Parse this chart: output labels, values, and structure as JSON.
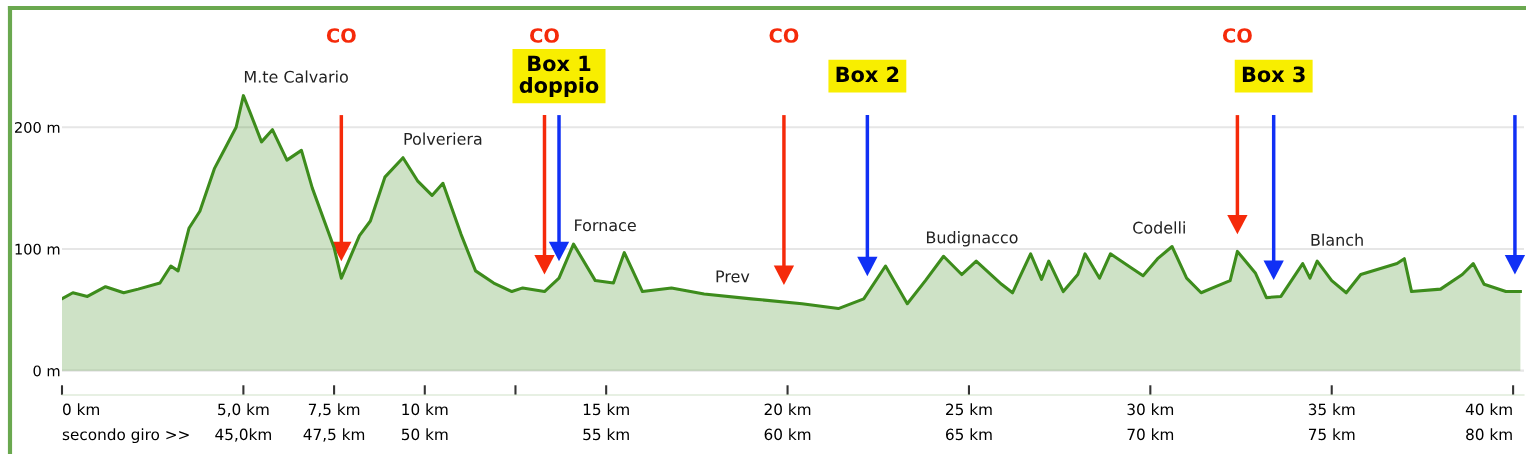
{
  "chart_data": {
    "type": "area",
    "x": [
      0,
      0.3,
      0.7,
      1.2,
      1.7,
      2.1,
      2.7,
      3.0,
      3.2,
      3.5,
      3.8,
      4.2,
      4.5,
      4.8,
      5.0,
      5.2,
      5.5,
      5.8,
      6.2,
      6.6,
      6.9,
      7.5,
      7.7,
      8.2,
      8.5,
      8.9,
      9.4,
      9.8,
      10.2,
      10.5,
      11.0,
      11.4,
      11.9,
      12.4,
      12.7,
      13.3,
      13.7,
      14.1,
      14.7,
      15.2,
      15.5,
      16.0,
      16.8,
      17.7,
      19.0,
      20.4,
      21.4,
      22.1,
      22.7,
      23.3,
      23.8,
      24.3,
      24.8,
      25.2,
      25.9,
      26.2,
      26.7,
      27.0,
      27.2,
      27.6,
      28.0,
      28.2,
      28.6,
      28.9,
      29.5,
      29.8,
      30.2,
      30.6,
      31.0,
      31.4,
      31.8,
      32.2,
      32.4,
      32.9,
      33.2,
      33.6,
      34.2,
      34.4,
      34.6,
      35.0,
      35.4,
      35.8,
      36.8,
      37.0,
      37.2,
      38.0,
      38.6,
      38.9,
      39.2,
      39.8,
      40.2
    ],
    "series": [
      {
        "color": "#3d8c1c",
        "values": [
          59,
          64,
          61,
          69,
          64,
          67,
          72,
          86,
          82,
          117,
          131,
          166,
          183,
          200,
          226,
          211,
          188,
          198,
          173,
          181,
          150,
          101,
          76,
          111,
          123,
          159,
          175,
          156,
          144,
          154,
          112,
          82,
          72,
          65,
          68,
          65,
          76,
          104,
          74,
          72,
          97,
          65,
          68,
          63,
          59,
          55,
          51,
          59,
          86,
          55,
          74,
          94,
          79,
          90,
          71,
          64,
          96,
          75,
          90,
          65,
          79,
          96,
          76,
          96,
          84,
          78,
          92,
          102,
          76,
          64,
          69,
          74,
          98,
          80,
          60,
          61,
          88,
          76,
          90,
          74,
          64,
          79,
          88,
          92,
          65,
          67,
          79,
          88,
          71,
          65,
          65
        ]
      }
    ],
    "xlim": [
      0,
      40.3
    ],
    "xticks": [
      {
        "value": 0,
        "label": "0 km"
      },
      {
        "value": 5,
        "label": "5,0 km"
      },
      {
        "value": 7.5,
        "label": "7,5 km"
      },
      {
        "value": 10,
        "label": "10 km"
      },
      {
        "value": 12.5,
        "label": null
      },
      {
        "value": 15,
        "label": "15 km"
      },
      {
        "value": 20,
        "label": "20 km"
      },
      {
        "value": 25,
        "label": "25 km"
      },
      {
        "value": 30,
        "label": "30 km"
      },
      {
        "value": 35,
        "label": "35 km"
      },
      {
        "value": 40,
        "label": "40 km"
      }
    ],
    "x2lim": [
      40,
      80.3
    ],
    "x2ticks": [
      {
        "value": 40,
        "label": "secondo giro >>"
      },
      {
        "value": 45,
        "label": "45,0km"
      },
      {
        "value": 47.5,
        "label": "47,5 km"
      },
      {
        "value": 50,
        "label": "50 km"
      },
      {
        "value": 55,
        "label": "55 km"
      },
      {
        "value": 60,
        "label": "60 km"
      },
      {
        "value": 65,
        "label": "65 km"
      },
      {
        "value": 70,
        "label": "70 km"
      },
      {
        "value": 75,
        "label": "75 km"
      },
      {
        "value": 80,
        "label": "80 km"
      }
    ],
    "ylim": [
      -20,
      298
    ],
    "yticks": [
      {
        "value": 0,
        "label": "0 m"
      },
      {
        "value": 100,
        "label": "100 m"
      },
      {
        "value": 200,
        "label": "200 m"
      }
    ],
    "grid": "y",
    "annotations": [
      {
        "text": "M.te Calvario",
        "x": 5.0,
        "y": 226
      },
      {
        "text": "Polveriera",
        "x": 9.4,
        "y": 175
      },
      {
        "text": "Fornace",
        "x": 14.1,
        "y": 104
      },
      {
        "text": "Prev",
        "x": 18.0,
        "y": 62
      },
      {
        "text": "Budignacco",
        "x": 23.8,
        "y": 74
      },
      {
        "text": "Codelli",
        "x": 29.5,
        "y": 84
      },
      {
        "text": "Blanch",
        "x": 34.4,
        "y": 76
      }
    ],
    "ref_lines": [
      {
        "axis": "x",
        "value": 7.7,
        "label": "CO",
        "color": "#f52a0a"
      },
      {
        "axis": "x",
        "value": 13.3,
        "label": "CO",
        "color": "#f52a0a"
      },
      {
        "axis": "x",
        "value": 13.7,
        "label": "Box 1\ndoppio",
        "color": "#1030f5"
      },
      {
        "axis": "x",
        "value": 19.9,
        "label": "CO",
        "color": "#f52a0a"
      },
      {
        "axis": "x",
        "value": 22.2,
        "label": "Box 2",
        "color": "#1030f5"
      },
      {
        "axis": "x",
        "value": 32.4,
        "label": "CO",
        "color": "#f52a0a"
      },
      {
        "axis": "x",
        "value": 33.4,
        "label": "Box 3",
        "color": "#1030f5"
      },
      {
        "axis": "x",
        "value": 40.05,
        "color": "#1030f5"
      }
    ]
  }
}
